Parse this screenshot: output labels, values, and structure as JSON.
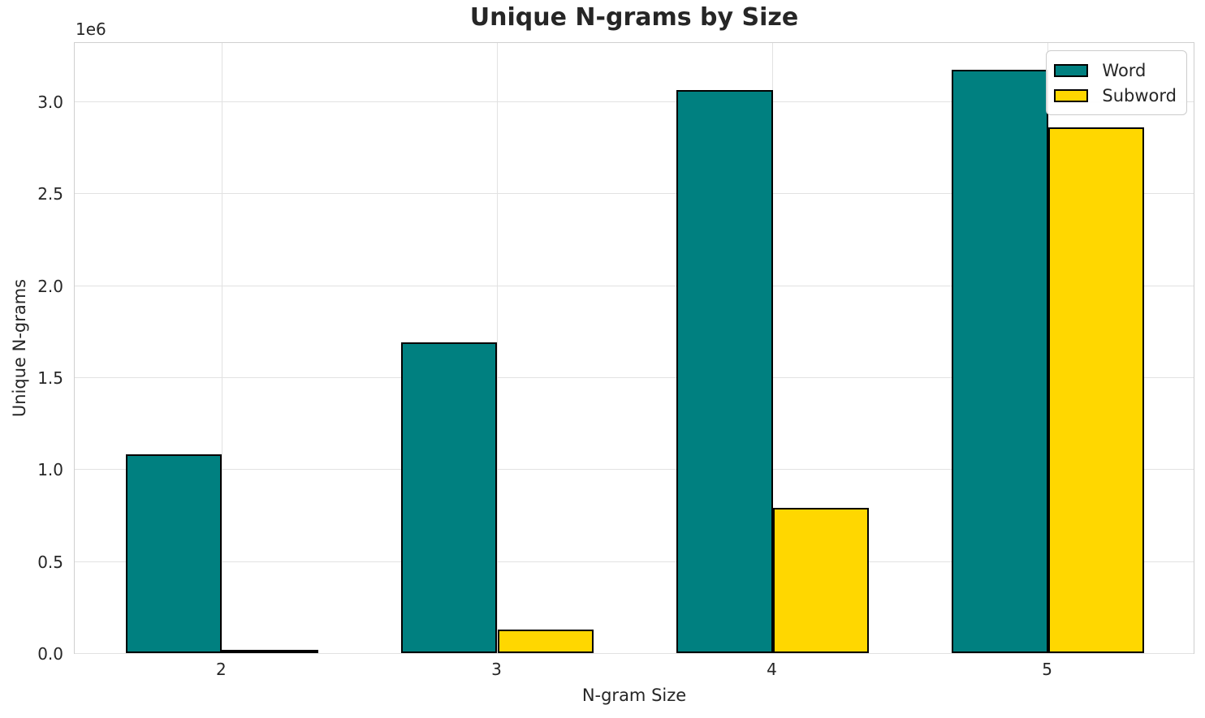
{
  "chart_data": {
    "type": "bar",
    "title": "Unique N-grams by Size",
    "xlabel": "N-gram Size",
    "ylabel": "Unique N-grams",
    "y_offset_text": "1e6",
    "categories": [
      "2",
      "3",
      "4",
      "5"
    ],
    "x_positions": [
      2,
      3,
      4,
      5
    ],
    "series": [
      {
        "name": "Word",
        "color": "#008080",
        "values": [
          1080000,
          1690000,
          3060000,
          3170000
        ]
      },
      {
        "name": "Subword",
        "color": "#FFD700",
        "values": [
          13000,
          130000,
          790000,
          2860000
        ]
      }
    ],
    "bar_width": 0.35,
    "bar_edge_color": "#000000",
    "xlim": [
      1.465,
      5.535
    ],
    "ylim": [
      0,
      3326000
    ],
    "yticks": [
      0,
      500000,
      1000000,
      1500000,
      2000000,
      2500000,
      3000000
    ],
    "ytick_labels": [
      "0.0",
      "0.5",
      "1.0",
      "1.5",
      "2.0",
      "2.5",
      "3.0"
    ],
    "grid": true,
    "grid_color": "#e2e2e2",
    "legend_position": "upper right",
    "text_color": "#262626",
    "background_color": "#ffffff"
  }
}
